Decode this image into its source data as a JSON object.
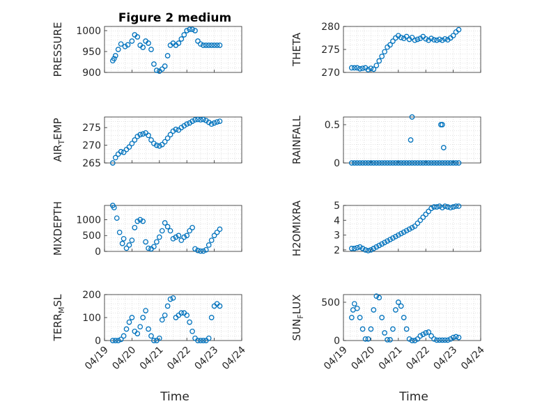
{
  "figure": {
    "title": "Figure 2 medium",
    "x_label": "Time",
    "colors": {
      "marker": "#0072BD",
      "axis": "#262626",
      "grid": "#d0d0d0",
      "background": "#ffffff"
    }
  },
  "chart_data": [
    {
      "type": "scatter",
      "marker": "open-circle",
      "title": "Figure 2 medium",
      "ylabel": "PRESSURE",
      "ylim": [
        900,
        1010
      ],
      "yticks": [
        900,
        950,
        1000
      ],
      "xlim": [
        "04/19",
        "04/24"
      ],
      "x_ticks": [
        "04/19",
        "04/20",
        "04/21",
        "04/22",
        "04/23",
        "04/24"
      ],
      "x_ticklabels_shown": false,
      "x": [
        0.3,
        0.35,
        0.4,
        0.5,
        0.6,
        0.75,
        0.85,
        1.0,
        1.1,
        1.2,
        1.3,
        1.4,
        1.5,
        1.6,
        1.7,
        1.8,
        1.9,
        2.0,
        2.1,
        2.2,
        2.3,
        2.4,
        2.5,
        2.6,
        2.7,
        2.8,
        2.9,
        3.0,
        3.1,
        3.2,
        3.3,
        3.4,
        3.5,
        3.6,
        3.7,
        3.8,
        3.9,
        4.0,
        4.1,
        4.2
      ],
      "y": [
        928,
        933,
        940,
        955,
        968,
        962,
        966,
        975,
        990,
        985,
        965,
        960,
        975,
        970,
        955,
        920,
        905,
        903,
        908,
        915,
        940,
        965,
        970,
        965,
        970,
        980,
        990,
        1000,
        1003,
        1003,
        1000,
        975,
        968,
        965,
        965,
        965,
        965,
        965,
        965,
        965
      ]
    },
    {
      "type": "scatter",
      "marker": "open-circle",
      "ylabel": "THETA",
      "ylim": [
        270,
        280
      ],
      "yticks": [
        270,
        275,
        280
      ],
      "xlim": [
        "04/19",
        "04/24"
      ],
      "x_ticks": [
        "04/19",
        "04/20",
        "04/21",
        "04/22",
        "04/23",
        "04/24"
      ],
      "x_ticklabels_shown": false,
      "x": [
        0.3,
        0.4,
        0.5,
        0.6,
        0.7,
        0.8,
        0.9,
        1.0,
        1.1,
        1.2,
        1.3,
        1.4,
        1.5,
        1.6,
        1.7,
        1.8,
        1.9,
        2.0,
        2.1,
        2.2,
        2.3,
        2.4,
        2.5,
        2.6,
        2.7,
        2.8,
        2.9,
        3.0,
        3.1,
        3.2,
        3.3,
        3.4,
        3.5,
        3.6,
        3.7,
        3.8,
        3.9,
        4.0,
        4.1,
        4.2
      ],
      "y": [
        271,
        271,
        271,
        270.8,
        270.9,
        271,
        270.6,
        270.9,
        270.7,
        271.5,
        272.5,
        273.5,
        274.5,
        275.5,
        276,
        276.8,
        277.5,
        278,
        277.6,
        277.4,
        277.8,
        277.2,
        277.6,
        277,
        277.2,
        277.4,
        277.8,
        277.3,
        277,
        277.4,
        277.1,
        277,
        277.2,
        277,
        277.3,
        277.1,
        277.5,
        278,
        278.8,
        279.3
      ]
    },
    {
      "type": "scatter",
      "marker": "open-circle",
      "ylabel": "AIR_TEMP",
      "ylim": [
        265,
        278
      ],
      "yticks": [
        265,
        270,
        275
      ],
      "xlim": [
        "04/19",
        "04/24"
      ],
      "x_ticks": [
        "04/19",
        "04/20",
        "04/21",
        "04/22",
        "04/23",
        "04/24"
      ],
      "x_ticklabels_shown": false,
      "x": [
        0.3,
        0.4,
        0.5,
        0.6,
        0.7,
        0.8,
        0.9,
        1.0,
        1.1,
        1.2,
        1.3,
        1.4,
        1.5,
        1.6,
        1.7,
        1.8,
        1.9,
        2.0,
        2.1,
        2.2,
        2.3,
        2.4,
        2.5,
        2.6,
        2.7,
        2.8,
        2.9,
        3.0,
        3.1,
        3.2,
        3.3,
        3.4,
        3.5,
        3.6,
        3.7,
        3.8,
        3.9,
        4.0,
        4.1,
        4.2
      ],
      "y": [
        265,
        266.5,
        267.5,
        268.2,
        268,
        268.8,
        269.5,
        270.5,
        271.5,
        272.5,
        273,
        273.2,
        273.5,
        272.8,
        271.5,
        270.5,
        270,
        269.8,
        270.2,
        271,
        272,
        273,
        274,
        274.5,
        274.3,
        275,
        275.5,
        276,
        276.3,
        276.8,
        277.2,
        277.3,
        277.2,
        277.3,
        277,
        276.5,
        276,
        276.3,
        276.6,
        276.8
      ]
    },
    {
      "type": "scatter",
      "marker": "open-circle",
      "ylabel": "RAINFALL",
      "ylim": [
        0,
        0.6
      ],
      "yticks": [
        0,
        0.5
      ],
      "xlim": [
        "04/19",
        "04/24"
      ],
      "x_ticks": [
        "04/19",
        "04/20",
        "04/21",
        "04/22",
        "04/23",
        "04/24"
      ],
      "x_ticklabels_shown": false,
      "x": [
        0.3,
        0.4,
        0.5,
        0.6,
        0.7,
        0.8,
        0.9,
        1.0,
        1.1,
        1.2,
        1.3,
        1.4,
        1.5,
        1.6,
        1.7,
        1.8,
        1.9,
        2.0,
        2.1,
        2.2,
        2.3,
        2.4,
        2.5,
        2.6,
        2.7,
        2.8,
        2.9,
        3.0,
        3.1,
        3.2,
        3.3,
        3.4,
        3.5,
        3.6,
        3.7,
        3.8,
        3.9,
        4.0,
        4.1,
        4.2,
        2.45,
        2.5,
        3.55,
        3.6,
        3.65
      ],
      "y": [
        0,
        0,
        0,
        0,
        0,
        0,
        0,
        0,
        0,
        0,
        0,
        0,
        0,
        0,
        0,
        0,
        0,
        0,
        0,
        0,
        0,
        0,
        0,
        0,
        0,
        0,
        0,
        0,
        0,
        0,
        0,
        0,
        0,
        0,
        0,
        0,
        0,
        0,
        0,
        0,
        0.3,
        0.6,
        0.5,
        0.5,
        0.2
      ]
    },
    {
      "type": "scatter",
      "marker": "open-circle",
      "ylabel": "MIXDEPTH",
      "ylim": [
        0,
        1450
      ],
      "yticks": [
        0,
        500,
        1000
      ],
      "xlim": [
        "04/19",
        "04/24"
      ],
      "x_ticks": [
        "04/19",
        "04/20",
        "04/21",
        "04/22",
        "04/23",
        "04/24"
      ],
      "x_ticklabels_shown": false,
      "x": [
        0.3,
        0.35,
        0.45,
        0.55,
        0.65,
        0.7,
        0.8,
        0.9,
        1.0,
        1.1,
        1.2,
        1.3,
        1.4,
        1.5,
        1.6,
        1.7,
        1.8,
        1.9,
        2.0,
        2.1,
        2.2,
        2.3,
        2.4,
        2.5,
        2.6,
        2.7,
        2.8,
        2.9,
        3.0,
        3.1,
        3.2,
        3.3,
        3.4,
        3.5,
        3.6,
        3.7,
        3.8,
        3.9,
        4.0,
        4.1,
        4.2
      ],
      "y": [
        1450,
        1380,
        1050,
        600,
        250,
        400,
        100,
        200,
        350,
        750,
        950,
        1000,
        950,
        300,
        100,
        80,
        150,
        300,
        450,
        650,
        900,
        780,
        650,
        400,
        450,
        500,
        350,
        450,
        500,
        650,
        750,
        80,
        30,
        10,
        10,
        50,
        200,
        350,
        500,
        600,
        700
      ]
    },
    {
      "type": "scatter",
      "marker": "open-circle",
      "ylabel": "H2OMIXRA",
      "ylim": [
        1.9,
        5
      ],
      "yticks": [
        2,
        3,
        4,
        5
      ],
      "xlim": [
        "04/19",
        "04/24"
      ],
      "x_ticks": [
        "04/19",
        "04/20",
        "04/21",
        "04/22",
        "04/23",
        "04/24"
      ],
      "x_ticklabels_shown": false,
      "x": [
        0.3,
        0.4,
        0.5,
        0.6,
        0.7,
        0.8,
        0.9,
        1.0,
        1.1,
        1.2,
        1.3,
        1.4,
        1.5,
        1.6,
        1.7,
        1.8,
        1.9,
        2.0,
        2.1,
        2.2,
        2.3,
        2.4,
        2.5,
        2.6,
        2.7,
        2.8,
        2.9,
        3.0,
        3.1,
        3.2,
        3.3,
        3.4,
        3.5,
        3.6,
        3.7,
        3.8,
        3.9,
        4.0,
        4.1,
        4.2
      ],
      "y": [
        2.1,
        2.1,
        2.15,
        2.2,
        2.1,
        2.0,
        1.95,
        2.0,
        2.1,
        2.2,
        2.3,
        2.4,
        2.5,
        2.6,
        2.7,
        2.8,
        2.9,
        3.0,
        3.1,
        3.2,
        3.3,
        3.4,
        3.5,
        3.6,
        3.8,
        4.0,
        4.2,
        4.4,
        4.6,
        4.8,
        4.9,
        4.9,
        4.95,
        4.85,
        4.95,
        4.9,
        4.85,
        4.9,
        4.95,
        4.95
      ]
    },
    {
      "type": "scatter",
      "marker": "open-circle",
      "ylabel": "TERR_MSL",
      "ylim": [
        0,
        200
      ],
      "yticks": [
        0,
        100,
        200
      ],
      "xlim": [
        "04/19",
        "04/24"
      ],
      "x_ticks": [
        "04/19",
        "04/20",
        "04/21",
        "04/22",
        "04/23",
        "04/24"
      ],
      "x_ticklabels_shown": true,
      "x": [
        0.3,
        0.4,
        0.5,
        0.6,
        0.7,
        0.8,
        0.9,
        1.0,
        1.1,
        1.2,
        1.3,
        1.4,
        1.5,
        1.6,
        1.7,
        1.8,
        1.9,
        2.0,
        2.1,
        2.2,
        2.3,
        2.4,
        2.5,
        2.6,
        2.7,
        2.8,
        2.9,
        3.0,
        3.1,
        3.2,
        3.3,
        3.4,
        3.5,
        3.6,
        3.7,
        3.8,
        3.9,
        4.0,
        4.1,
        4.2
      ],
      "y": [
        0,
        0,
        0,
        5,
        20,
        50,
        80,
        100,
        40,
        30,
        60,
        100,
        130,
        50,
        20,
        0,
        0,
        10,
        90,
        110,
        150,
        180,
        185,
        100,
        110,
        120,
        120,
        110,
        80,
        40,
        10,
        0,
        0,
        0,
        0,
        10,
        100,
        150,
        160,
        150
      ]
    },
    {
      "type": "scatter",
      "marker": "open-circle",
      "ylabel": "SUN_FLUX",
      "ylim": [
        0,
        600
      ],
      "yticks": [
        0,
        500
      ],
      "xlim": [
        "04/19",
        "04/24"
      ],
      "x_ticks": [
        "04/19",
        "04/20",
        "04/21",
        "04/22",
        "04/23",
        "04/24"
      ],
      "x_ticklabels_shown": true,
      "x": [
        0.3,
        0.35,
        0.4,
        0.5,
        0.6,
        0.7,
        0.8,
        0.9,
        1.0,
        1.1,
        1.2,
        1.3,
        1.4,
        1.5,
        1.6,
        1.7,
        1.8,
        1.9,
        2.0,
        2.1,
        2.2,
        2.3,
        2.4,
        2.5,
        2.6,
        2.7,
        2.8,
        2.9,
        3.0,
        3.1,
        3.2,
        3.3,
        3.4,
        3.5,
        3.6,
        3.7,
        3.8,
        3.9,
        4.0,
        4.1,
        4.2
      ],
      "y": [
        300,
        400,
        480,
        420,
        300,
        150,
        20,
        20,
        150,
        400,
        580,
        560,
        300,
        100,
        10,
        10,
        150,
        400,
        500,
        450,
        300,
        150,
        20,
        0,
        0,
        20,
        60,
        80,
        100,
        110,
        60,
        20,
        5,
        5,
        5,
        5,
        5,
        20,
        40,
        50,
        40
      ]
    }
  ]
}
